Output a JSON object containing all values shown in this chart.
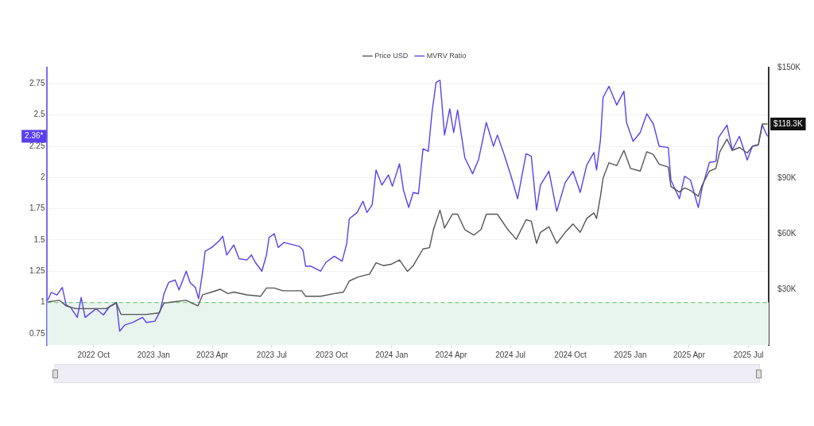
{
  "chart_data": {
    "type": "line",
    "legend": "top",
    "grid": "y",
    "xlim": [
      "2022-07-22",
      "2025-08-01"
    ],
    "xticks": [
      {
        "value": "2022-10-01",
        "label": "2022 Oct"
      },
      {
        "value": "2023-01-01",
        "label": "2023 Jan"
      },
      {
        "value": "2023-04-01",
        "label": "2023 Apr"
      },
      {
        "value": "2023-07-01",
        "label": "2023 Jul"
      },
      {
        "value": "2023-10-01",
        "label": "2023 Oct"
      },
      {
        "value": "2024-01-01",
        "label": "2024 Jan"
      },
      {
        "value": "2024-04-01",
        "label": "2024 Apr"
      },
      {
        "value": "2024-07-01",
        "label": "2024 Jul"
      },
      {
        "value": "2024-10-01",
        "label": "2024 Oct"
      },
      {
        "value": "2025-01-01",
        "label": "2025 Jan"
      },
      {
        "value": "2025-04-01",
        "label": "2025 Apr"
      },
      {
        "value": "2025-07-01",
        "label": "2025 Jul"
      }
    ],
    "ylim": [
      0.66,
      2.88
    ],
    "yticks": [
      0.75,
      1,
      1.25,
      1.5,
      1.75,
      2,
      2.25,
      2.5,
      2.75
    ],
    "y2lim": [
      0,
      150000
    ],
    "y2ticks": [
      {
        "value": 30000,
        "label": "$30K"
      },
      {
        "value": 60000,
        "label": "$60K"
      },
      {
        "value": 90000,
        "label": "$90K"
      },
      {
        "value": 150000,
        "label": "$150K"
      }
    ],
    "bands": [
      {
        "axis": "y",
        "from": 0.66,
        "to": 1,
        "color": "#e8f4ee"
      }
    ],
    "ref_lines": [
      {
        "axis": "y",
        "value": 1,
        "color": "#7ccf7c",
        "line_style": "dashed"
      }
    ],
    "annotations": [
      "$118.3K",
      "2.36*"
    ],
    "series": [
      {
        "name": "Price USD",
        "color": "#555555",
        "axis": "y2",
        "x": [
          "2022-07-23",
          "2022-08-10",
          "2022-08-20",
          "2022-09-04",
          "2022-09-21",
          "2022-10-20",
          "2022-11-05",
          "2022-11-12",
          "2022-11-30",
          "2022-12-21",
          "2023-01-09",
          "2023-01-17",
          "2023-02-01",
          "2023-02-20",
          "2023-03-10",
          "2023-03-17",
          "2023-03-31",
          "2023-04-13",
          "2023-04-25",
          "2023-05-04",
          "2023-05-24",
          "2023-06-14",
          "2023-06-23",
          "2023-07-05",
          "2023-07-18",
          "2023-08-16",
          "2023-08-22",
          "2023-09-14",
          "2023-10-05",
          "2023-10-19",
          "2023-10-28",
          "2023-11-11",
          "2023-11-28",
          "2023-12-08",
          "2023-12-19",
          "2023-12-31",
          "2024-01-13",
          "2024-01-25",
          "2024-02-03",
          "2024-02-18",
          "2024-02-28",
          "2024-03-05",
          "2024-03-15",
          "2024-03-22",
          "2024-04-03",
          "2024-04-11",
          "2024-04-22",
          "2024-05-06",
          "2024-05-17",
          "2024-05-25",
          "2024-06-11",
          "2024-06-27",
          "2024-07-10",
          "2024-07-25",
          "2024-08-02",
          "2024-08-10",
          "2024-08-16",
          "2024-08-29",
          "2024-09-10",
          "2024-09-23",
          "2024-10-05",
          "2024-10-16",
          "2024-10-26",
          "2024-11-06",
          "2024-11-10",
          "2024-11-16",
          "2024-11-20",
          "2024-11-29",
          "2024-12-11",
          "2024-12-22",
          "2025-01-01",
          "2025-01-16",
          "2025-01-26",
          "2025-02-05",
          "2025-02-14",
          "2025-02-28",
          "2025-03-04",
          "2025-03-17",
          "2025-03-25",
          "2025-04-03",
          "2025-04-15",
          "2025-04-21",
          "2025-05-02",
          "2025-05-12",
          "2025-05-18",
          "2025-05-29",
          "2025-06-06",
          "2025-06-17",
          "2025-06-29",
          "2025-07-07",
          "2025-07-16",
          "2025-07-22",
          "2025-07-30"
        ],
        "values": [
          23300,
          24100,
          21100,
          19600,
          19600,
          19600,
          22600,
          16500,
          16500,
          16500,
          17300,
          22600,
          23300,
          24100,
          21100,
          27100,
          28600,
          30100,
          27800,
          28600,
          27100,
          26300,
          30800,
          30800,
          29300,
          29300,
          26300,
          26300,
          27800,
          28600,
          34600,
          36800,
          38300,
          44400,
          42900,
          43600,
          45900,
          39800,
          42900,
          51900,
          52600,
          62400,
          72900,
          63200,
          70700,
          70700,
          62400,
          59400,
          62400,
          70700,
          70700,
          62400,
          57100,
          67700,
          66900,
          54900,
          60900,
          63900,
          54900,
          60900,
          65400,
          60900,
          68400,
          71400,
          68400,
          80400,
          90200,
          98500,
          97000,
          105200,
          95500,
          94000,
          104500,
          103000,
          97700,
          96200,
          85700,
          82700,
          84900,
          83500,
          80400,
          86500,
          94000,
          95500,
          104500,
          111300,
          105200,
          106800,
          103800,
          107500,
          108300,
          119500,
          119500
        ]
      },
      {
        "name": "MVRV Ratio",
        "color": "#5a3ff2",
        "x": [
          "2022-07-23",
          "2022-07-28",
          "2022-08-06",
          "2022-08-14",
          "2022-08-20",
          "2022-08-27",
          "2022-09-06",
          "2022-09-12",
          "2022-09-18",
          "2022-10-05",
          "2022-10-16",
          "2022-10-26",
          "2022-11-05",
          "2022-11-10",
          "2022-11-18",
          "2022-11-30",
          "2022-12-15",
          "2022-12-21",
          "2023-01-03",
          "2023-01-11",
          "2023-01-17",
          "2023-01-24",
          "2023-02-03",
          "2023-02-09",
          "2023-02-20",
          "2023-02-26",
          "2023-03-06",
          "2023-03-11",
          "2023-03-17",
          "2023-03-21",
          "2023-03-31",
          "2023-04-11",
          "2023-04-17",
          "2023-04-23",
          "2023-05-04",
          "2023-05-12",
          "2023-05-24",
          "2023-05-31",
          "2023-06-06",
          "2023-06-16",
          "2023-06-23",
          "2023-06-27",
          "2023-07-05",
          "2023-07-11",
          "2023-07-20",
          "2023-08-12",
          "2023-08-18",
          "2023-08-22",
          "2023-08-30",
          "2023-09-14",
          "2023-09-22",
          "2023-10-05",
          "2023-10-17",
          "2023-10-24",
          "2023-10-28",
          "2023-11-09",
          "2023-11-18",
          "2023-11-24",
          "2023-12-02",
          "2023-12-08",
          "2023-12-17",
          "2023-12-27",
          "2024-01-02",
          "2024-01-13",
          "2024-01-19",
          "2024-01-27",
          "2024-02-03",
          "2024-02-11",
          "2024-02-18",
          "2024-02-26",
          "2024-03-03",
          "2024-03-09",
          "2024-03-15",
          "2024-03-22",
          "2024-03-30",
          "2024-04-05",
          "2024-04-11",
          "2024-04-22",
          "2024-05-04",
          "2024-05-13",
          "2024-05-25",
          "2024-06-05",
          "2024-06-11",
          "2024-06-21",
          "2024-07-02",
          "2024-07-12",
          "2024-07-25",
          "2024-08-02",
          "2024-08-10",
          "2024-08-16",
          "2024-08-29",
          "2024-09-10",
          "2024-09-23",
          "2024-10-05",
          "2024-10-16",
          "2024-10-26",
          "2024-11-06",
          "2024-11-10",
          "2024-11-16",
          "2024-11-20",
          "2024-11-29",
          "2024-12-11",
          "2024-12-22",
          "2024-12-26",
          "2025-01-05",
          "2025-01-16",
          "2025-01-26",
          "2025-02-05",
          "2025-02-14",
          "2025-02-28",
          "2025-03-04",
          "2025-03-17",
          "2025-03-25",
          "2025-04-03",
          "2025-04-15",
          "2025-04-21",
          "2025-05-02",
          "2025-05-12",
          "2025-05-16",
          "2025-05-29",
          "2025-06-06",
          "2025-06-17",
          "2025-06-29",
          "2025-07-07",
          "2025-07-16",
          "2025-07-22",
          "2025-07-30"
        ],
        "values": [
          1.02,
          1.08,
          1.06,
          1.12,
          0.98,
          0.96,
          0.88,
          1.04,
          0.88,
          0.95,
          0.9,
          0.97,
          1.0,
          0.77,
          0.82,
          0.84,
          0.88,
          0.84,
          0.85,
          0.93,
          1.07,
          1.16,
          1.18,
          1.1,
          1.25,
          1.16,
          1.12,
          1.03,
          1.24,
          1.41,
          1.44,
          1.49,
          1.53,
          1.38,
          1.46,
          1.35,
          1.34,
          1.38,
          1.32,
          1.25,
          1.38,
          1.52,
          1.55,
          1.44,
          1.48,
          1.45,
          1.42,
          1.29,
          1.29,
          1.25,
          1.32,
          1.37,
          1.33,
          1.47,
          1.67,
          1.72,
          1.81,
          1.72,
          1.78,
          2.06,
          1.94,
          2.02,
          1.93,
          2.11,
          1.9,
          1.76,
          1.88,
          1.87,
          2.23,
          2.21,
          2.53,
          2.76,
          2.78,
          2.34,
          2.55,
          2.36,
          2.54,
          2.16,
          2.03,
          2.14,
          2.44,
          2.25,
          2.34,
          2.19,
          2.01,
          1.83,
          2.19,
          2.17,
          1.74,
          1.94,
          2.05,
          1.73,
          1.96,
          2.05,
          1.88,
          2.1,
          2.2,
          2.06,
          2.3,
          2.64,
          2.73,
          2.58,
          2.69,
          2.44,
          2.29,
          2.36,
          2.51,
          2.43,
          2.25,
          2.24,
          1.98,
          1.83,
          2.01,
          1.98,
          1.76,
          1.92,
          2.12,
          2.13,
          2.32,
          2.42,
          2.22,
          2.33,
          2.14,
          2.25,
          2.26,
          2.42,
          2.33
        ]
      }
    ]
  }
}
